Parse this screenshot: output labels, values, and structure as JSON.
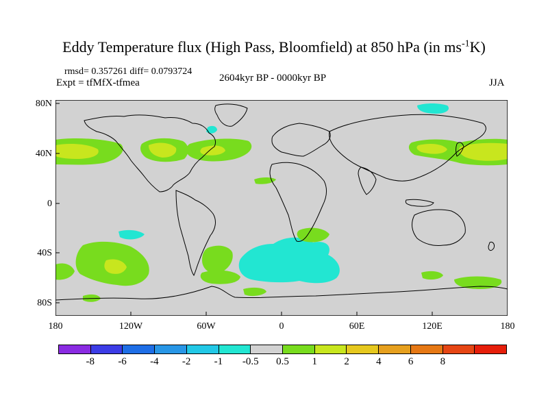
{
  "header": {
    "title_main": "Eddy Temperature flux (High Pass, Bloomfield) at 850 hPa (in ms",
    "title_sup": "-1",
    "title_end": "K)",
    "stats": "rmsd= 0.357261  diff= 0.0793724",
    "experiment": "Expt = tfMfX-tfmea",
    "period": "2604kyr BP - 0000kyr BP",
    "season": "JJA"
  },
  "axes": {
    "y_ticks": [
      "80N",
      "40N",
      "0",
      "40S",
      "80S"
    ],
    "x_ticks": [
      "180",
      "120W",
      "60W",
      "0",
      "60E",
      "120E",
      "180"
    ]
  },
  "colorbar": {
    "colors": [
      "#8a2be2",
      "#3c3ce6",
      "#1e6ee6",
      "#2896e6",
      "#22c8e6",
      "#22e6d2",
      "#d2d2d2",
      "#78dc1e",
      "#c8e61e",
      "#e6c81e",
      "#e6a01e",
      "#e67814",
      "#e64614",
      "#e61e0a"
    ],
    "labels": [
      "-8",
      "-6",
      "-4",
      "-2",
      "-1",
      "-0.5",
      "0.5",
      "1",
      "2",
      "4",
      "6",
      "8"
    ]
  }
}
